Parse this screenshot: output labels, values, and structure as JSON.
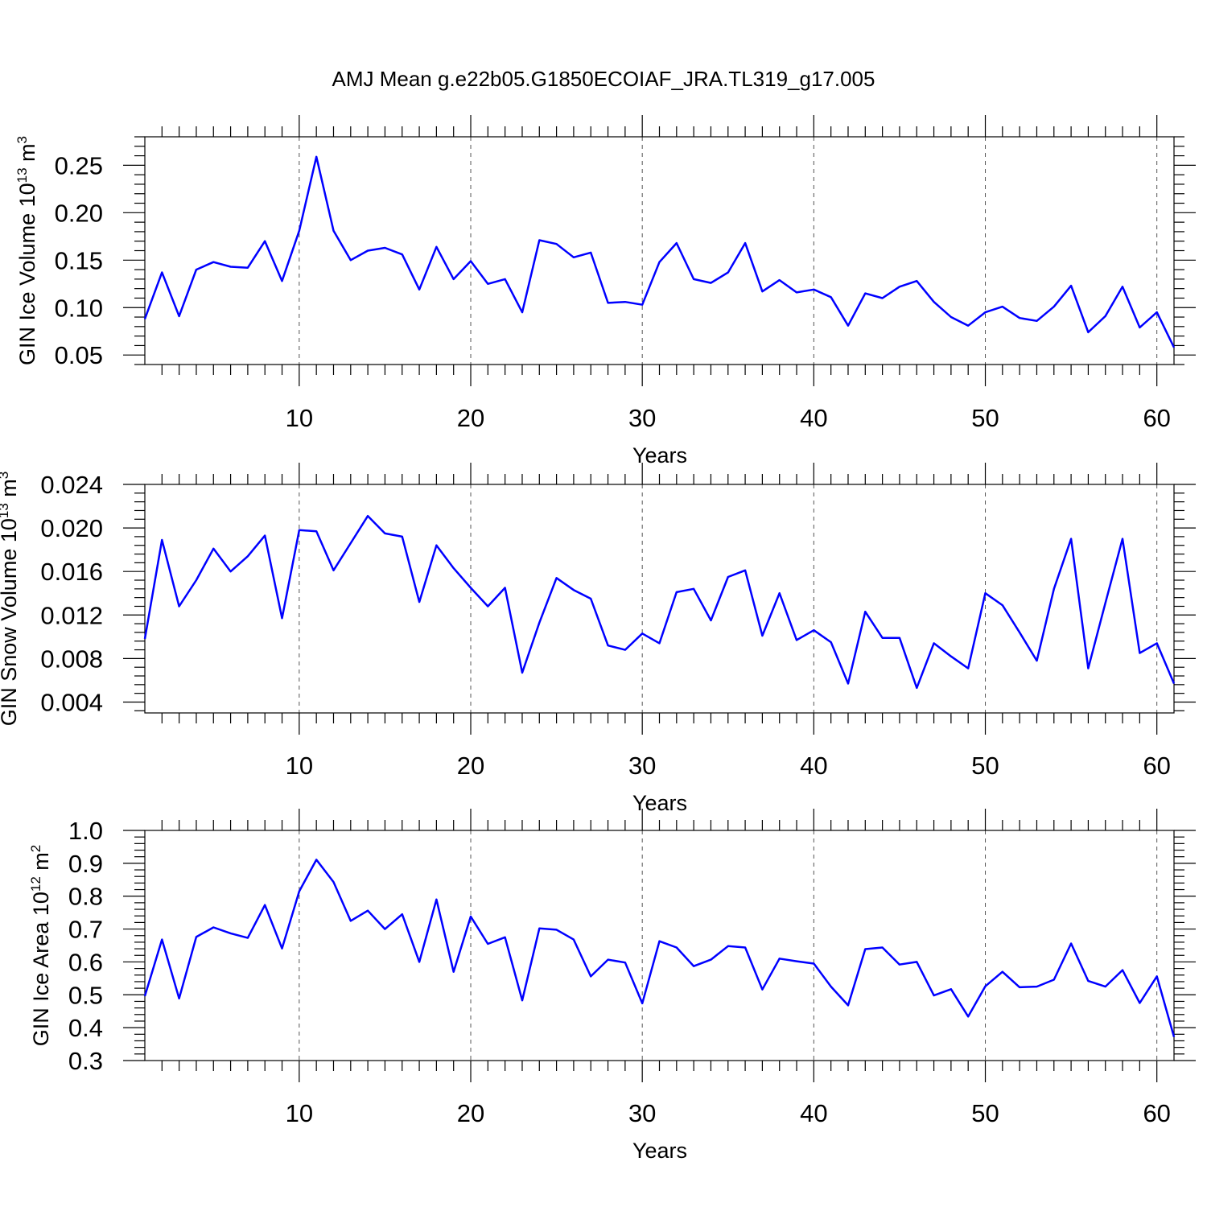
{
  "title": "AMJ Mean g.e22b05.G1850ECOIAF_JRA.TL319_g17.005",
  "colors": {
    "line": "#0000ff",
    "grid": "#555555",
    "axis": "#000000"
  },
  "chart_data": [
    {
      "type": "line",
      "xlabel": "Years",
      "ylabel": {
        "main": "GIN Ice Volume 10",
        "exp": "13",
        "unit": " m",
        "pow": "3"
      },
      "xlim": [
        1,
        61
      ],
      "ylim": [
        0.04,
        0.28
      ],
      "xticks": [
        10,
        20,
        30,
        40,
        50,
        60
      ],
      "yticks": [
        "0.05",
        "0.10",
        "0.15",
        "0.20",
        "0.25"
      ],
      "grid": "vertical dashed at major x ticks",
      "x": [
        1,
        2,
        3,
        4,
        5,
        6,
        7,
        8,
        9,
        10,
        11,
        12,
        13,
        14,
        15,
        16,
        17,
        18,
        19,
        20,
        21,
        22,
        23,
        24,
        25,
        26,
        27,
        28,
        29,
        30,
        31,
        32,
        33,
        34,
        35,
        36,
        37,
        38,
        39,
        40,
        41,
        42,
        43,
        44,
        45,
        46,
        47,
        48,
        49,
        50,
        51,
        52,
        53,
        54,
        55,
        56,
        57,
        58,
        59,
        60,
        61
      ],
      "series": [
        {
          "values": [
            0.088,
            0.137,
            0.091,
            0.14,
            0.148,
            0.143,
            0.142,
            0.17,
            0.128,
            0.181,
            0.259,
            0.181,
            0.15,
            0.16,
            0.163,
            0.156,
            0.119,
            0.164,
            0.13,
            0.149,
            0.125,
            0.13,
            0.095,
            0.171,
            0.167,
            0.153,
            0.158,
            0.105,
            0.106,
            0.103,
            0.148,
            0.168,
            0.13,
            0.126,
            0.137,
            0.168,
            0.117,
            0.129,
            0.116,
            0.119,
            0.111,
            0.081,
            0.115,
            0.11,
            0.122,
            0.128,
            0.106,
            0.09,
            0.081,
            0.095,
            0.101,
            0.089,
            0.086,
            0.101,
            0.123,
            0.074,
            0.091,
            0.122,
            0.079,
            0.095,
            0.058
          ]
        }
      ]
    },
    {
      "type": "line",
      "xlabel": "Years",
      "ylabel": {
        "main": "GIN Snow Volume 10",
        "exp": "13",
        "unit": " m",
        "pow": "3"
      },
      "xlim": [
        1,
        61
      ],
      "ylim": [
        0.003,
        0.024
      ],
      "xticks": [
        10,
        20,
        30,
        40,
        50,
        60
      ],
      "yticks": [
        "0.004",
        "0.008",
        "0.012",
        "0.016",
        "0.020",
        "0.024"
      ],
      "grid": "vertical dashed at major x ticks",
      "x": [
        1,
        2,
        3,
        4,
        5,
        6,
        7,
        8,
        9,
        10,
        11,
        12,
        13,
        14,
        15,
        16,
        17,
        18,
        19,
        20,
        21,
        22,
        23,
        24,
        25,
        26,
        27,
        28,
        29,
        30,
        31,
        32,
        33,
        34,
        35,
        36,
        37,
        38,
        39,
        40,
        41,
        42,
        43,
        44,
        45,
        46,
        47,
        48,
        49,
        50,
        51,
        52,
        53,
        54,
        55,
        56,
        57,
        58,
        59,
        60,
        61
      ],
      "series": [
        {
          "values": [
            0.0098,
            0.0189,
            0.0128,
            0.0152,
            0.0181,
            0.016,
            0.0174,
            0.0193,
            0.0117,
            0.0198,
            0.0197,
            0.0161,
            0.0186,
            0.0211,
            0.0195,
            0.0192,
            0.0132,
            0.0184,
            0.0163,
            0.0145,
            0.0128,
            0.0145,
            0.0067,
            0.0113,
            0.0154,
            0.0143,
            0.0135,
            0.0092,
            0.0088,
            0.0103,
            0.0094,
            0.0141,
            0.0144,
            0.0115,
            0.0155,
            0.0161,
            0.0101,
            0.014,
            0.0097,
            0.0106,
            0.0095,
            0.0057,
            0.0123,
            0.0099,
            0.0099,
            0.0053,
            0.0094,
            0.0082,
            0.0071,
            0.014,
            0.0129,
            0.0104,
            0.0078,
            0.0144,
            0.019,
            0.0071,
            0.0131,
            0.019,
            0.0085,
            0.0094,
            0.0057
          ]
        }
      ]
    },
    {
      "type": "line",
      "xlabel": "Years",
      "ylabel": {
        "main": "GIN Ice Area 10",
        "exp": "12",
        "unit": " m",
        "pow": "2"
      },
      "xlim": [
        1,
        61
      ],
      "ylim": [
        0.3,
        1.0
      ],
      "xticks": [
        10,
        20,
        30,
        40,
        50,
        60
      ],
      "yticks": [
        "0.3",
        "0.4",
        "0.5",
        "0.6",
        "0.7",
        "0.8",
        "0.9",
        "1.0"
      ],
      "grid": "vertical dashed at major x ticks",
      "x": [
        1,
        2,
        3,
        4,
        5,
        6,
        7,
        8,
        9,
        10,
        11,
        12,
        13,
        14,
        15,
        16,
        17,
        18,
        19,
        20,
        21,
        22,
        23,
        24,
        25,
        26,
        27,
        28,
        29,
        30,
        31,
        32,
        33,
        34,
        35,
        36,
        37,
        38,
        39,
        40,
        41,
        42,
        43,
        44,
        45,
        46,
        47,
        48,
        49,
        50,
        51,
        52,
        53,
        54,
        55,
        56,
        57,
        58,
        59,
        60,
        61
      ],
      "series": [
        {
          "values": [
            0.496,
            0.668,
            0.489,
            0.676,
            0.705,
            0.687,
            0.673,
            0.773,
            0.641,
            0.815,
            0.911,
            0.843,
            0.725,
            0.756,
            0.7,
            0.745,
            0.6,
            0.79,
            0.57,
            0.738,
            0.655,
            0.675,
            0.483,
            0.702,
            0.698,
            0.668,
            0.556,
            0.607,
            0.598,
            0.474,
            0.663,
            0.644,
            0.587,
            0.607,
            0.648,
            0.644,
            0.516,
            0.61,
            0.602,
            0.595,
            0.525,
            0.468,
            0.639,
            0.644,
            0.592,
            0.6,
            0.498,
            0.517,
            0.434,
            0.526,
            0.57,
            0.523,
            0.525,
            0.546,
            0.656,
            0.542,
            0.525,
            0.575,
            0.475,
            0.556,
            0.372
          ]
        }
      ]
    }
  ]
}
